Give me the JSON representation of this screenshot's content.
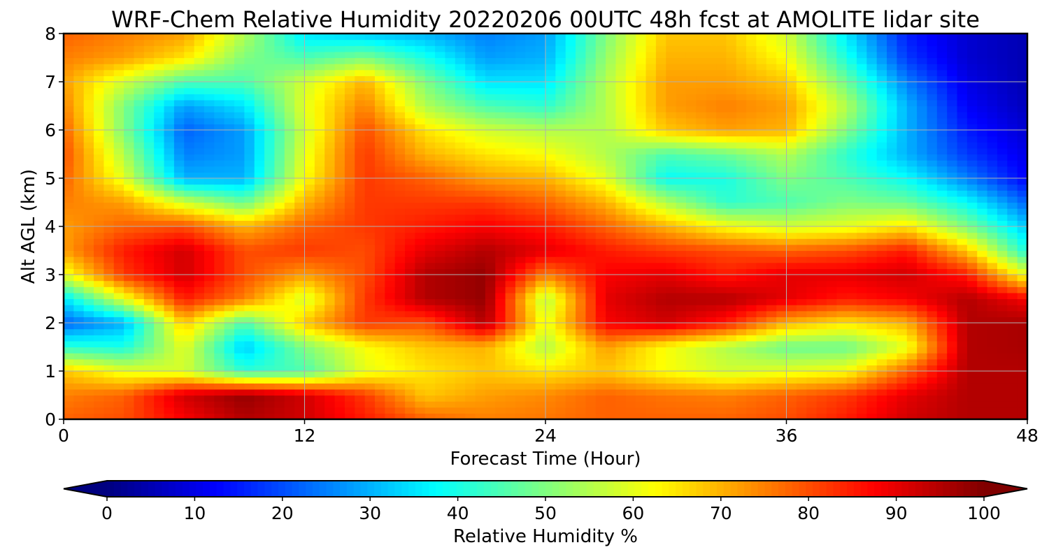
{
  "chart_data": {
    "type": "heatmap",
    "title": "WRF-Chem Relative Humidity 20220206 00UTC 48h fcst at AMOLITE lidar site",
    "xlabel": "Forecast Time (Hour)",
    "ylabel": "Alt AGL (km)",
    "xlim": [
      0,
      48
    ],
    "ylim": [
      0,
      8
    ],
    "x_ticks": [
      "0",
      "12",
      "24",
      "36",
      "48"
    ],
    "y_ticks": [
      "0",
      "1",
      "2",
      "3",
      "4",
      "5",
      "6",
      "7",
      "8"
    ],
    "grid": true,
    "colorbar": {
      "label": "Relative Humidity %",
      "range": [
        0,
        100
      ],
      "ticks": [
        "0",
        "10",
        "20",
        "30",
        "40",
        "50",
        "60",
        "70",
        "80",
        "90",
        "100"
      ],
      "extend": "both",
      "colormap": "jet"
    },
    "x": [
      0,
      3,
      6,
      9,
      12,
      15,
      18,
      21,
      24,
      27,
      30,
      33,
      36,
      39,
      42,
      45,
      48
    ],
    "y": [
      0,
      0.5,
      1,
      1.5,
      2,
      2.5,
      3,
      3.5,
      4,
      4.5,
      5,
      5.5,
      6,
      6.5,
      7,
      7.5,
      8
    ],
    "z": [
      [
        78,
        80,
        88,
        95,
        92,
        85,
        78,
        75,
        76,
        78,
        78,
        78,
        80,
        85,
        92,
        95,
        95
      ],
      [
        75,
        78,
        92,
        98,
        92,
        82,
        68,
        72,
        74,
        78,
        76,
        75,
        78,
        82,
        90,
        95,
        95
      ],
      [
        68,
        60,
        58,
        42,
        45,
        60,
        65,
        68,
        65,
        68,
        62,
        58,
        60,
        62,
        78,
        95,
        95
      ],
      [
        42,
        40,
        60,
        32,
        50,
        62,
        68,
        70,
        55,
        72,
        62,
        55,
        48,
        48,
        60,
        95,
        96
      ],
      [
        22,
        30,
        68,
        45,
        68,
        82,
        80,
        95,
        60,
        88,
        92,
        85,
        70,
        65,
        70,
        95,
        96
      ],
      [
        35,
        60,
        85,
        75,
        58,
        82,
        95,
        98,
        55,
        90,
        95,
        95,
        90,
        85,
        88,
        95,
        88
      ],
      [
        60,
        82,
        92,
        80,
        72,
        80,
        95,
        98,
        75,
        88,
        90,
        85,
        90,
        90,
        92,
        85,
        60
      ],
      [
        72,
        85,
        92,
        80,
        82,
        80,
        90,
        95,
        90,
        85,
        82,
        80,
        78,
        80,
        85,
        68,
        40
      ],
      [
        72,
        78,
        80,
        70,
        78,
        82,
        85,
        88,
        85,
        78,
        70,
        62,
        58,
        60,
        65,
        50,
        32
      ],
      [
        75,
        72,
        58,
        48,
        70,
        82,
        82,
        82,
        78,
        70,
        55,
        42,
        45,
        50,
        48,
        38,
        22
      ],
      [
        78,
        60,
        30,
        30,
        62,
        82,
        78,
        72,
        70,
        60,
        38,
        40,
        50,
        45,
        38,
        25,
        12
      ],
      [
        80,
        55,
        25,
        28,
        60,
        82,
        70,
        65,
        62,
        55,
        45,
        48,
        55,
        42,
        30,
        18,
        10
      ],
      [
        78,
        50,
        22,
        28,
        58,
        80,
        65,
        58,
        55,
        55,
        68,
        72,
        70,
        50,
        30,
        15,
        8
      ],
      [
        75,
        50,
        28,
        35,
        60,
        75,
        55,
        45,
        42,
        55,
        72,
        75,
        72,
        55,
        30,
        12,
        6
      ],
      [
        72,
        58,
        45,
        45,
        58,
        70,
        50,
        35,
        35,
        55,
        72,
        72,
        68,
        48,
        25,
        10,
        5
      ],
      [
        75,
        72,
        65,
        50,
        45,
        50,
        40,
        28,
        30,
        52,
        70,
        70,
        62,
        40,
        18,
        8,
        5
      ],
      [
        78,
        75,
        72,
        55,
        35,
        32,
        30,
        25,
        28,
        50,
        68,
        68,
        58,
        35,
        15,
        8,
        5
      ]
    ]
  }
}
